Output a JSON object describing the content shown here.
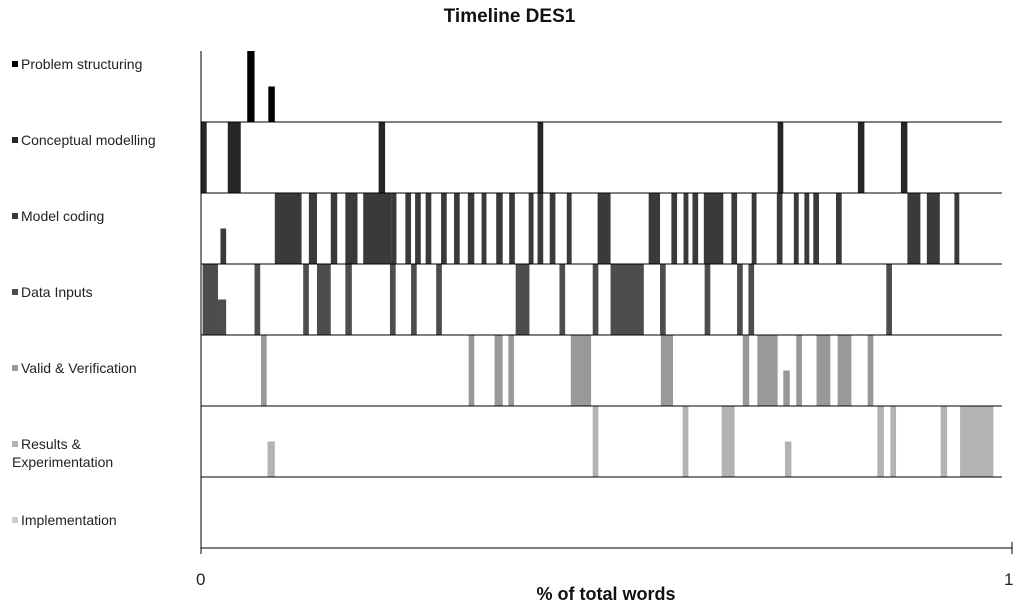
{
  "chart_data": {
    "type": "bar",
    "title": "Timeline DES1",
    "xlabel": "% of total words",
    "ylabel": "",
    "xlim": [
      0,
      1
    ],
    "x_ticks": [
      "0",
      "1"
    ],
    "grid": false,
    "legend_position": "left",
    "series": [
      {
        "name": "Problem structuring",
        "color": "#000000",
        "segments": [
          [
            0.057,
            0.066,
            1.0
          ],
          [
            0.083,
            0.091,
            0.5
          ]
        ]
      },
      {
        "name": "Conceptual modelling",
        "color": "#262626",
        "segments": [
          [
            0.0,
            0.007,
            1.0
          ],
          [
            0.033,
            0.049,
            1.0
          ],
          [
            0.219,
            0.227,
            1.0
          ],
          [
            0.415,
            0.422,
            1.0
          ],
          [
            0.711,
            0.718,
            1.0
          ],
          [
            0.81,
            0.818,
            1.0
          ],
          [
            0.863,
            0.871,
            1.0
          ]
        ]
      },
      {
        "name": "Model coding",
        "color": "#3a3a3a",
        "segments": [
          [
            0.024,
            0.031,
            0.5
          ],
          [
            0.091,
            0.124,
            1.0
          ],
          [
            0.133,
            0.143,
            1.0
          ],
          [
            0.16,
            0.168,
            1.0
          ],
          [
            0.178,
            0.193,
            1.0
          ],
          [
            0.2,
            0.235,
            1.0
          ],
          [
            0.235,
            0.241,
            1.0
          ],
          [
            0.252,
            0.259,
            1.0
          ],
          [
            0.264,
            0.271,
            1.0
          ],
          [
            0.277,
            0.284,
            1.0
          ],
          [
            0.296,
            0.303,
            1.0
          ],
          [
            0.312,
            0.319,
            1.0
          ],
          [
            0.329,
            0.337,
            1.0
          ],
          [
            0.346,
            0.352,
            1.0
          ],
          [
            0.364,
            0.372,
            1.0
          ],
          [
            0.38,
            0.387,
            1.0
          ],
          [
            0.404,
            0.41,
            1.0
          ],
          [
            0.415,
            0.422,
            1.0
          ],
          [
            0.43,
            0.437,
            1.0
          ],
          [
            0.451,
            0.457,
            1.0
          ],
          [
            0.489,
            0.505,
            1.0
          ],
          [
            0.552,
            0.566,
            1.0
          ],
          [
            0.58,
            0.587,
            1.0
          ],
          [
            0.595,
            0.601,
            1.0
          ],
          [
            0.606,
            0.613,
            1.0
          ],
          [
            0.62,
            0.644,
            1.0
          ],
          [
            0.654,
            0.661,
            1.0
          ],
          [
            0.679,
            0.685,
            1.0
          ],
          [
            0.71,
            0.717,
            1.0
          ],
          [
            0.731,
            0.737,
            1.0
          ],
          [
            0.744,
            0.75,
            1.0
          ],
          [
            0.755,
            0.762,
            1.0
          ],
          [
            0.783,
            0.79,
            1.0
          ],
          [
            0.871,
            0.887,
            1.0
          ],
          [
            0.895,
            0.911,
            1.0
          ],
          [
            0.929,
            0.935,
            1.0
          ]
        ]
      },
      {
        "name": "Data Inputs",
        "color": "#4d4d4d",
        "segments": [
          [
            0.002,
            0.021,
            1.0
          ],
          [
            0.021,
            0.031,
            0.5
          ],
          [
            0.066,
            0.073,
            1.0
          ],
          [
            0.126,
            0.133,
            1.0
          ],
          [
            0.143,
            0.16,
            1.0
          ],
          [
            0.178,
            0.186,
            1.0
          ],
          [
            0.233,
            0.24,
            1.0
          ],
          [
            0.259,
            0.266,
            1.0
          ],
          [
            0.29,
            0.297,
            1.0
          ],
          [
            0.388,
            0.405,
            1.0
          ],
          [
            0.442,
            0.449,
            1.0
          ],
          [
            0.483,
            0.49,
            1.0
          ],
          [
            0.505,
            0.546,
            1.0
          ],
          [
            0.566,
            0.573,
            1.0
          ],
          [
            0.621,
            0.628,
            1.0
          ],
          [
            0.661,
            0.668,
            1.0
          ],
          [
            0.675,
            0.682,
            1.0
          ],
          [
            0.845,
            0.852,
            1.0
          ]
        ]
      },
      {
        "name": "Valid & Verification",
        "color": "#999999",
        "segments": [
          [
            0.074,
            0.081,
            1.0
          ],
          [
            0.33,
            0.337,
            1.0
          ],
          [
            0.362,
            0.372,
            1.0
          ],
          [
            0.379,
            0.386,
            1.0
          ],
          [
            0.456,
            0.481,
            1.0
          ],
          [
            0.567,
            0.582,
            1.0
          ],
          [
            0.668,
            0.676,
            1.0
          ],
          [
            0.686,
            0.711,
            1.0
          ],
          [
            0.718,
            0.726,
            0.5
          ],
          [
            0.734,
            0.741,
            1.0
          ],
          [
            0.759,
            0.776,
            1.0
          ],
          [
            0.785,
            0.802,
            1.0
          ],
          [
            0.822,
            0.829,
            1.0
          ]
        ]
      },
      {
        "name": "Results & Experimentation",
        "color": "#b3b3b3",
        "segments": [
          [
            0.082,
            0.091,
            0.5
          ],
          [
            0.483,
            0.49,
            1.0
          ],
          [
            0.594,
            0.601,
            1.0
          ],
          [
            0.642,
            0.658,
            1.0
          ],
          [
            0.72,
            0.728,
            0.5
          ],
          [
            0.834,
            0.842,
            1.0
          ],
          [
            0.85,
            0.857,
            1.0
          ],
          [
            0.912,
            0.92,
            1.0
          ],
          [
            0.936,
            0.977,
            1.0
          ]
        ]
      },
      {
        "name": "Implementation",
        "color": "#cccccc",
        "segments": []
      }
    ]
  },
  "legend_lines": [
    [
      "Problem structuring"
    ],
    [
      "Conceptual modelling"
    ],
    [
      "Model coding"
    ],
    [
      "Data Inputs"
    ],
    [
      "Valid & Verification"
    ],
    [
      "Results &",
      "Experimentation"
    ],
    [
      "Implementation"
    ]
  ]
}
